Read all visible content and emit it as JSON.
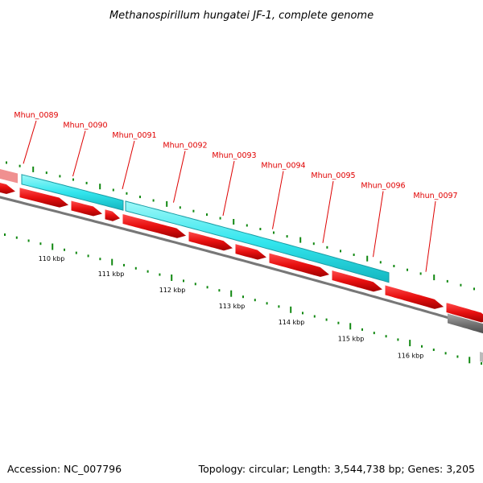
{
  "title": "Methanospirillum hungatei JF-1, complete genome",
  "footer": {
    "accession": "Accession: NC_007796",
    "summary": "Topology: circular; Length: 3,544,738 bp; Genes: 3,205"
  },
  "genes": [
    {
      "label": "Mhun_0089"
    },
    {
      "label": "Mhun_0090"
    },
    {
      "label": "Mhun_0091"
    },
    {
      "label": "Mhun_0092"
    },
    {
      "label": "Mhun_0093"
    },
    {
      "label": "Mhun_0094"
    },
    {
      "label": "Mhun_0095"
    },
    {
      "label": "Mhun_0096"
    },
    {
      "label": "Mhun_0097"
    }
  ],
  "ruler": {
    "labels": [
      "110 kbp",
      "111 kbp",
      "112 kbp",
      "113 kbp",
      "114 kbp",
      "115 kbp",
      "116 kbp"
    ]
  },
  "colors": {
    "gene_cds": "#ee1111",
    "operon": "#33eeee",
    "backbone": "#777777",
    "tick": "#118811",
    "label_red": "#dd0000",
    "pseudo_pink": "#f09090",
    "gray_feature": "#666666"
  }
}
